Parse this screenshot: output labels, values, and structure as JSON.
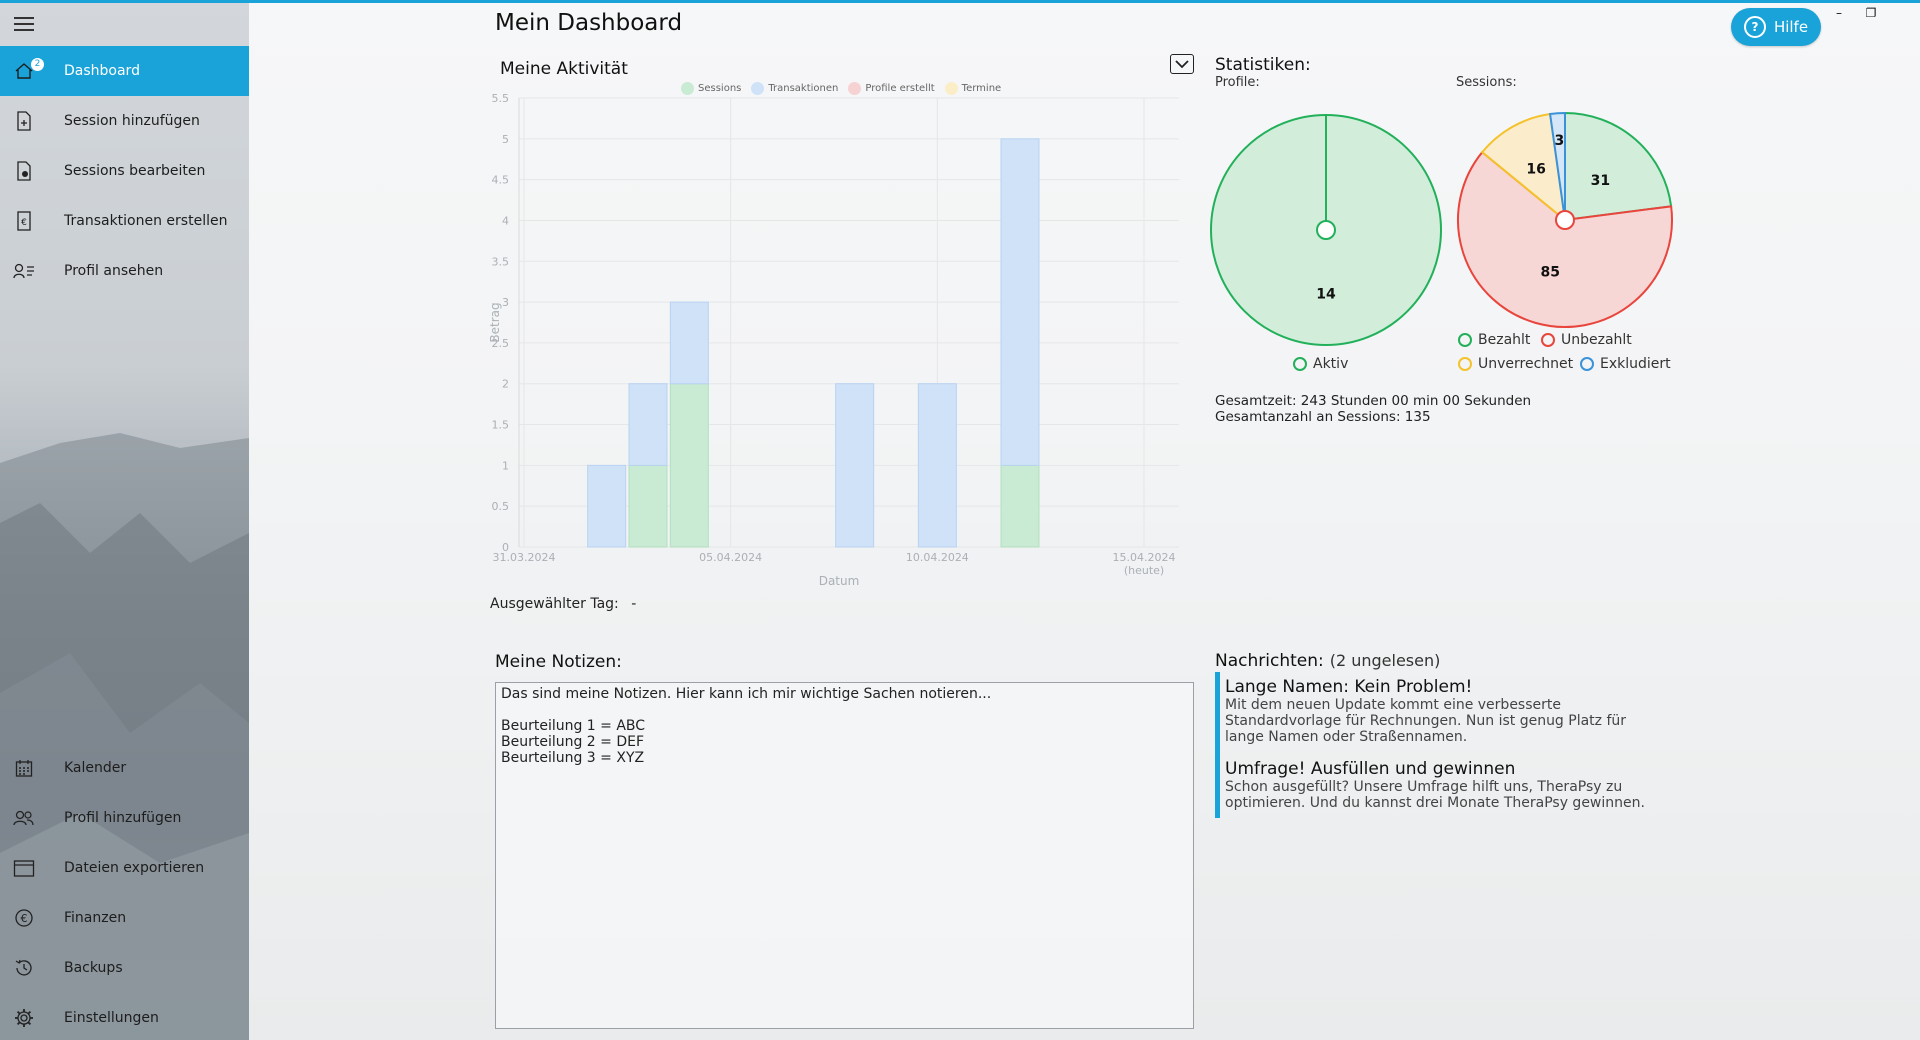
{
  "colors": {
    "accent": "#1aa3d9",
    "sessions": "#c9ead3",
    "transaktionen": "#cfe2f7",
    "profile_erstellt": "#f6d2d2",
    "termine": "#fbedc6",
    "bezahlt": "#22b05a",
    "unbezahlt": "#e8453c",
    "unverrechnet": "#f4c22b",
    "exkludiert": "#3a92d9"
  },
  "sidebar": {
    "top_items": [
      {
        "label": "Dashboard",
        "icon": "home-icon",
        "badge": "2",
        "active": true
      },
      {
        "label": "Session hinzufügen",
        "icon": "document-add-icon"
      },
      {
        "label": "Sessions bearbeiten",
        "icon": "document-edit-icon"
      },
      {
        "label": "Transaktionen erstellen",
        "icon": "euro-document-icon"
      },
      {
        "label": "Profil ansehen",
        "icon": "profile-list-icon"
      }
    ],
    "bottom_items": [
      {
        "label": "Kalender",
        "icon": "calendar-icon"
      },
      {
        "label": "Profil hinzufügen",
        "icon": "add-user-icon"
      },
      {
        "label": "Dateien exportieren",
        "icon": "export-box-icon"
      },
      {
        "label": "Finanzen",
        "icon": "euro-circle-icon"
      },
      {
        "label": "Backups",
        "icon": "history-icon"
      },
      {
        "label": "Einstellungen",
        "icon": "gear-icon"
      }
    ]
  },
  "header": {
    "title": "Mein Dashboard",
    "help_label": "Hilfe",
    "help_icon": "question-circle-icon"
  },
  "window_controls": {
    "minimize": "–",
    "restore": "❐"
  },
  "activity": {
    "title": "Meine Aktivität",
    "selected_day_label": "Ausgewählter Tag:",
    "selected_day_value": "-"
  },
  "chart_data": {
    "type": "bar",
    "stacked": true,
    "x": [
      "31.03.2024",
      "01.04.2024",
      "02.04.2024",
      "03.04.2024",
      "04.04.2024",
      "05.04.2024",
      "06.04.2024",
      "07.04.2024",
      "08.04.2024",
      "09.04.2024",
      "10.04.2024",
      "11.04.2024",
      "12.04.2024",
      "13.04.2024",
      "14.04.2024",
      "15.04.2024"
    ],
    "x_tick_labels": [
      {
        "index": 0,
        "lines": [
          "31.03.2024"
        ]
      },
      {
        "index": 5,
        "lines": [
          "05.04.2024"
        ]
      },
      {
        "index": 10,
        "lines": [
          "10.04.2024"
        ]
      },
      {
        "index": 15,
        "lines": [
          "15.04.2024",
          "(heute)"
        ]
      }
    ],
    "series": [
      {
        "name": "Sessions",
        "values": [
          0,
          0,
          0,
          1,
          2,
          0,
          0,
          0,
          0,
          0,
          0,
          0,
          1,
          0,
          0,
          0
        ]
      },
      {
        "name": "Transaktionen",
        "values": [
          0,
          0,
          1,
          1,
          1,
          0,
          0,
          0,
          2,
          0,
          2,
          0,
          4,
          0,
          0,
          0
        ]
      },
      {
        "name": "Profile erstellt",
        "values": [
          0,
          0,
          0,
          0,
          0,
          0,
          0,
          0,
          0,
          0,
          0,
          0,
          0,
          0,
          0,
          0
        ]
      },
      {
        "name": "Termine",
        "values": [
          0,
          0,
          0,
          0,
          0,
          0,
          0,
          0,
          0,
          0,
          0,
          0,
          0,
          0,
          0,
          0
        ]
      }
    ],
    "ylim": [
      0,
      5.5
    ],
    "y_ticks": [
      "0",
      "0.5",
      "1",
      "1.5",
      "2",
      "2.5",
      "3",
      "3.5",
      "4",
      "4.5",
      "5",
      "5.5"
    ],
    "xlabel": "Datum",
    "ylabel": "Betrag",
    "legend_position": "top-center",
    "grid": true
  },
  "stats": {
    "title": "Statistiken:",
    "profiles_label": "Profile:",
    "sessions_label": "Sessions:",
    "profiles_pie": {
      "slices": [
        {
          "name": "Aktiv",
          "value": 14,
          "color_key": "bezahlt"
        }
      ]
    },
    "sessions_pie": {
      "slices": [
        {
          "name": "Bezahlt",
          "value": 31,
          "color_key": "bezahlt"
        },
        {
          "name": "Unbezahlt",
          "value": 85,
          "color_key": "unbezahlt"
        },
        {
          "name": "Unverrechnet",
          "value": 16,
          "color_key": "unverrechnet"
        },
        {
          "name": "Exkludiert",
          "value": 3,
          "color_key": "exkludiert"
        }
      ]
    },
    "total_time": "Gesamtzeit: 243 Stunden 00 min 00 Sekunden",
    "total_sessions": "Gesamtanzahl an Sessions: 135"
  },
  "notes": {
    "title": "Meine Notizen:",
    "content": "Das sind meine Notizen. Hier kann ich mir wichtige Sachen notieren...\n\nBeurteilung 1 = ABC\nBeurteilung 2 = DEF\nBeurteilung 3 = XYZ"
  },
  "messages": {
    "title": "Nachrichten:",
    "unread": "(2 ungelesen)",
    "items": [
      {
        "title": "Lange Namen: Kein Problem!",
        "body": "Mit dem neuen Update kommt eine verbesserte Standardvorlage für Rechnungen. Nun ist genug Platz für lange Namen oder Straßennamen."
      },
      {
        "title": "Umfrage! Ausfüllen und gewinnen",
        "body": "Schon ausgefüllt? Unsere Umfrage hilft uns, TheraPsy zu optimieren. Und du kannst drei Monate TheraPsy gewinnen."
      }
    ]
  }
}
